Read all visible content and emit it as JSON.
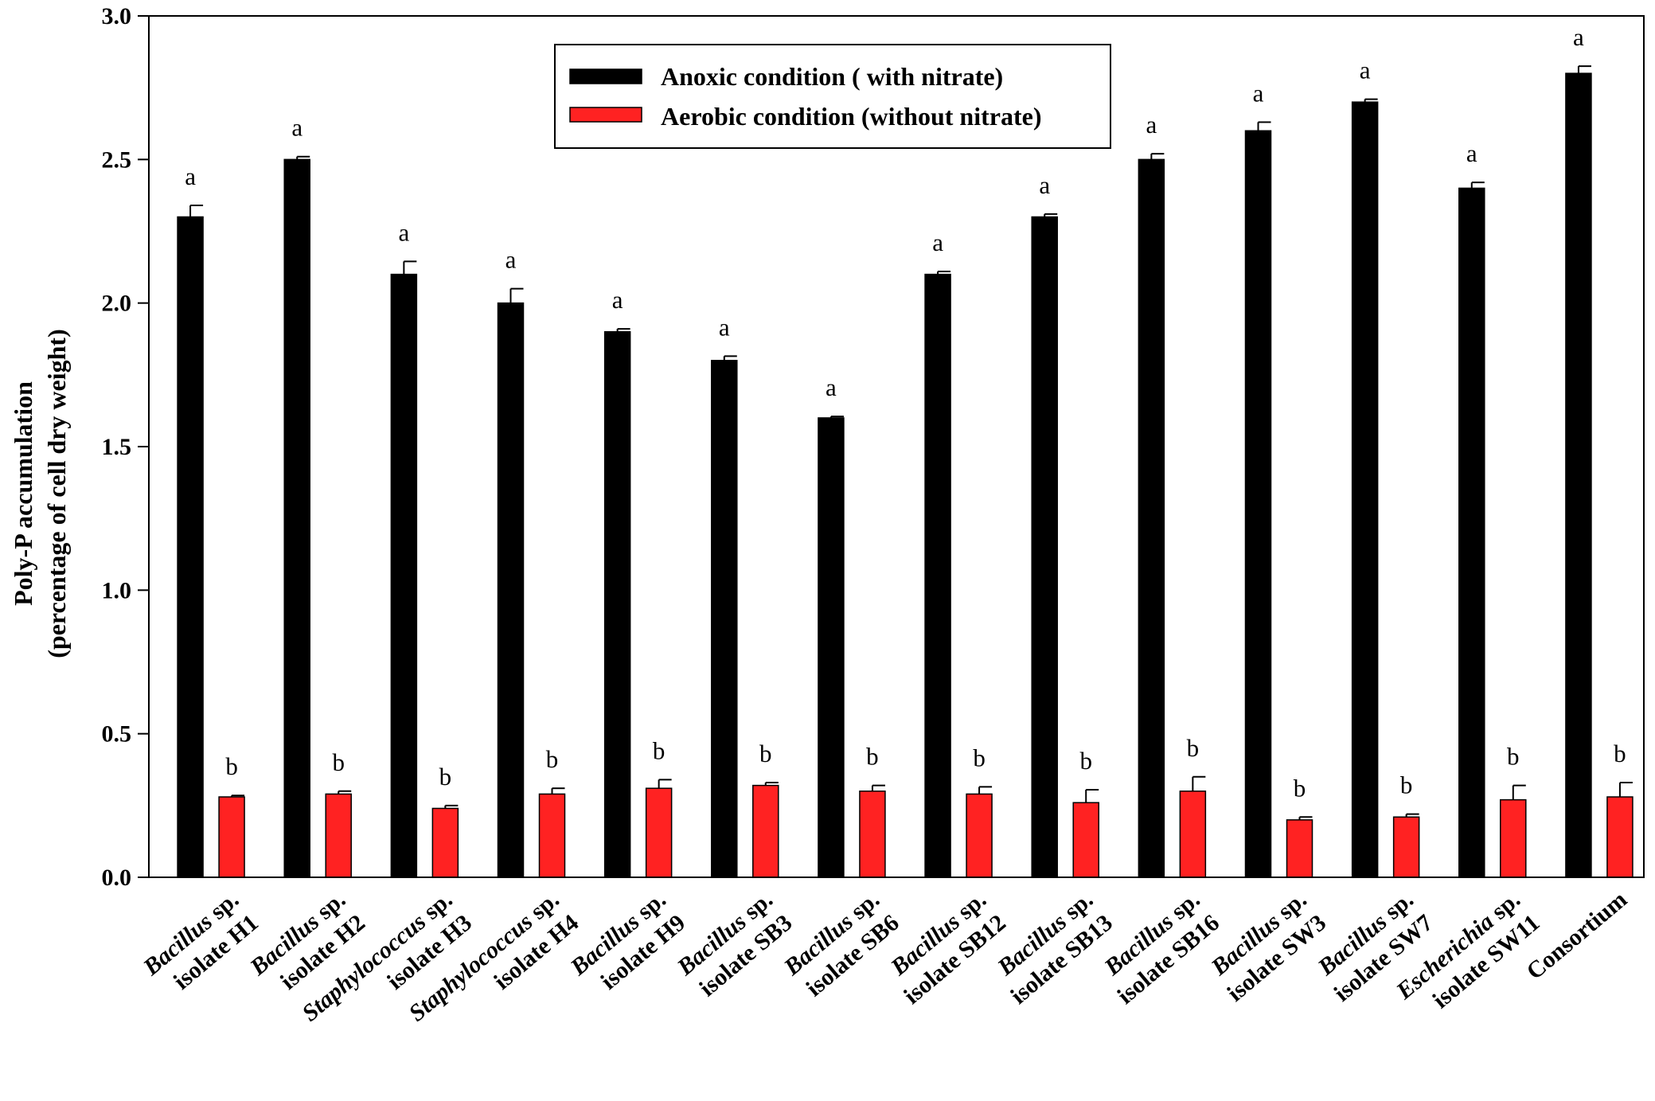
{
  "chart_data": {
    "type": "bar",
    "title": "",
    "xlabel": "",
    "ylabel_line1": "Poly-P accumulation",
    "ylabel_line2": "(percentage of cell dry weight)",
    "ylim": [
      0,
      3.0
    ],
    "yticks": [
      "0.0",
      "0.5",
      "1.0",
      "1.5",
      "2.0",
      "2.5",
      "3.0"
    ],
    "legend_position": "top-center",
    "categories": [
      {
        "genus": "Bacillus",
        "suffix": " sp.",
        "isolate": "isolate H1"
      },
      {
        "genus": "Bacillus",
        "suffix": " sp.",
        "isolate": "isolate H2"
      },
      {
        "genus": "Staphylococcus",
        "suffix": " sp.",
        "isolate": "isolate H3"
      },
      {
        "genus": "Staphylococcus",
        "suffix": " sp.",
        "isolate": "isolate H4"
      },
      {
        "genus": "Bacillus",
        "suffix": " sp.",
        "isolate": "isolate H9"
      },
      {
        "genus": "Bacillus",
        "suffix": " sp.",
        "isolate": "isolate SB3"
      },
      {
        "genus": "Bacillus",
        "suffix": " sp.",
        "isolate": "isolate SB6"
      },
      {
        "genus": "Bacillus",
        "suffix": " sp.",
        "isolate": "isolate SB12"
      },
      {
        "genus": "Bacillus",
        "suffix": " sp.",
        "isolate": "isolate SB13"
      },
      {
        "genus": "Bacillus",
        "suffix": " sp.",
        "isolate": "isolate SB16"
      },
      {
        "genus": "Bacillus",
        "suffix": " sp.",
        "isolate": "isolate SW3"
      },
      {
        "genus": "Bacillus",
        "suffix": " sp.",
        "isolate": "isolate SW7"
      },
      {
        "genus": "Escherichia",
        "suffix": " sp.",
        "isolate": "isolate SW11"
      },
      {
        "genus": "",
        "suffix": "",
        "isolate": "Consortium"
      }
    ],
    "series": [
      {
        "name": "Anoxic condition ( with nitrate)",
        "color": "#000000",
        "values": [
          2.3,
          2.5,
          2.1,
          2.0,
          1.9,
          1.8,
          1.6,
          2.1,
          2.3,
          2.5,
          2.6,
          2.7,
          2.4,
          2.8
        ],
        "errors": [
          0.04,
          0.01,
          0.045,
          0.05,
          0.01,
          0.015,
          0.005,
          0.01,
          0.01,
          0.02,
          0.03,
          0.01,
          0.02,
          0.025
        ],
        "sig_labels": [
          "a",
          "a",
          "a",
          "a",
          "a",
          "a",
          "a",
          "a",
          "a",
          "a",
          "a",
          "a",
          "a",
          "a"
        ]
      },
      {
        "name": "Aerobic condition (without nitrate)",
        "color": "#ff2222",
        "values": [
          0.28,
          0.29,
          0.24,
          0.29,
          0.31,
          0.32,
          0.3,
          0.29,
          0.26,
          0.3,
          0.2,
          0.21,
          0.27,
          0.28
        ],
        "errors": [
          0.005,
          0.01,
          0.01,
          0.02,
          0.03,
          0.01,
          0.02,
          0.025,
          0.045,
          0.05,
          0.01,
          0.01,
          0.05,
          0.05
        ],
        "sig_labels": [
          "b",
          "b",
          "b",
          "b",
          "b",
          "b",
          "b",
          "b",
          "b",
          "b",
          "b",
          "b",
          "b",
          "b"
        ]
      }
    ]
  }
}
